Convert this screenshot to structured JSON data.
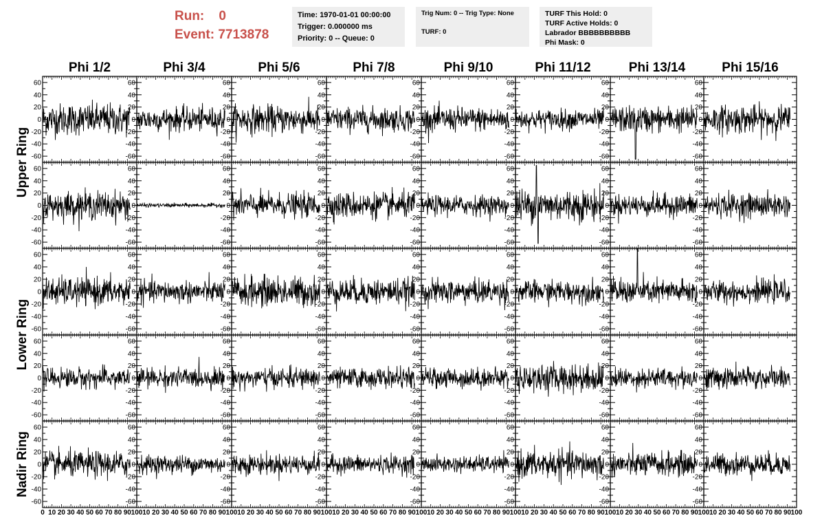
{
  "header": {
    "run_label": "Run:",
    "run_value": "0",
    "event_label": "Event:",
    "event_value": "7713878",
    "time": "Time: 1970-01-01 00:00:00",
    "trigger": "Trigger: 0.000000 ms",
    "priority": "Priority: 0 -- Queue: 0",
    "trig_num": "Trig Num: 0 -- Trig Type: None",
    "turf": "TURF: 0",
    "turf_hold": "TURF This Hold: 0",
    "turf_active": "TURF Active Holds: 0",
    "labrador": "Labrador BBBBBBBBBB",
    "phi_mask": "Phi Mask: 0"
  },
  "chart_data": {
    "type": "line",
    "columns": [
      "Phi 1/2",
      "Phi 3/4",
      "Phi 5/6",
      "Phi 7/8",
      "Phi 9/10",
      "Phi 11/12",
      "Phi 13/14",
      "Phi 15/16"
    ],
    "ring_labels": [
      {
        "label": "Upper Ring",
        "rows": [
          0,
          1
        ]
      },
      {
        "label": "Lower Ring",
        "rows": [
          2,
          3
        ]
      },
      {
        "label": "Nadir Ring",
        "rows": [
          4
        ]
      }
    ],
    "rows": 5,
    "ylim": [
      -70,
      70
    ],
    "xlim": [
      0,
      100
    ],
    "yticks": [
      -60,
      -40,
      -20,
      0,
      20,
      40,
      60
    ],
    "xticks": [
      0,
      10,
      20,
      30,
      40,
      50,
      60,
      70,
      80,
      90,
      100
    ],
    "samples_per_trace": 256,
    "x_range_of_trace": [
      0,
      93
    ],
    "amplitude_rms": [
      [
        16,
        12,
        14,
        12,
        12,
        10,
        13,
        14
      ],
      [
        14,
        2,
        12,
        13,
        10,
        16,
        11,
        12
      ],
      [
        14,
        11,
        15,
        13,
        12,
        11,
        12,
        11
      ],
      [
        10,
        10,
        10,
        10,
        10,
        14,
        10,
        11
      ],
      [
        13,
        9,
        10,
        9,
        8,
        14,
        12,
        11
      ]
    ],
    "spikes": [
      {
        "row": 1,
        "col": 5,
        "x": 22,
        "y": 65
      },
      {
        "row": 1,
        "col": 5,
        "x": 24,
        "y": -62
      },
      {
        "row": 2,
        "col": 6,
        "x": 29,
        "y": 70
      },
      {
        "row": 0,
        "col": 6,
        "x": 27,
        "y": -65
      }
    ]
  }
}
